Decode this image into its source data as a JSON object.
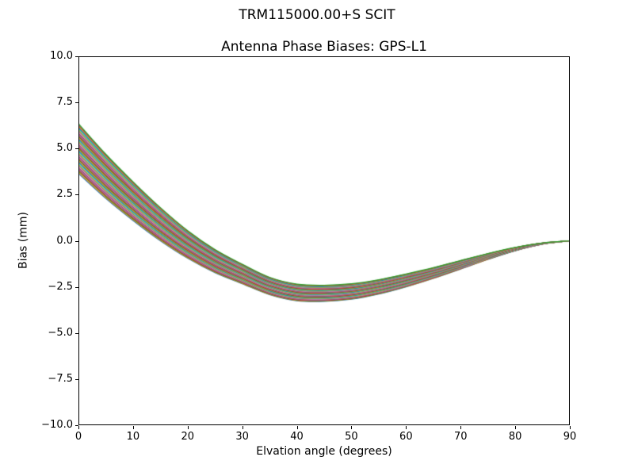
{
  "chart_data": {
    "type": "line",
    "suptitle": "TRM115000.00+S  SCIT",
    "title": "Antenna Phase Biases: GPS-L1",
    "xlabel": "Elvation angle (degrees)",
    "ylabel": "Bias (mm)",
    "xlim": [
      0,
      90
    ],
    "ylim": [
      -10,
      10
    ],
    "grid": false,
    "legend": "none",
    "xticks": [
      0,
      10,
      20,
      30,
      40,
      50,
      60,
      70,
      80,
      90
    ],
    "xtick_labels": [
      "0",
      "10",
      "20",
      "30",
      "40",
      "50",
      "60",
      "70",
      "80",
      "90"
    ],
    "yticks": [
      10.0,
      7.5,
      5.0,
      2.5,
      0.0,
      -2.5,
      -5.0,
      -7.5,
      -10.0
    ],
    "ytick_labels": [
      "10.0",
      "7.5",
      "5.0",
      "2.5",
      "0.0",
      "−2.5",
      "−5.0",
      "−7.5",
      "−10.0"
    ],
    "x": [
      0,
      5,
      10,
      15,
      20,
      25,
      30,
      35,
      40,
      45,
      50,
      55,
      60,
      65,
      70,
      75,
      80,
      85,
      90
    ],
    "base": [
      5.0,
      3.5,
      2.15,
      0.9,
      -0.2,
      -1.1,
      -1.8,
      -2.45,
      -2.8,
      -2.85,
      -2.75,
      -2.5,
      -2.15,
      -1.75,
      -1.3,
      -0.85,
      -0.45,
      -0.15,
      0.0
    ],
    "spread": [
      1.35,
      1.2,
      1.05,
      0.9,
      0.75,
      0.63,
      0.53,
      0.47,
      0.45,
      0.44,
      0.42,
      0.39,
      0.35,
      0.29,
      0.23,
      0.16,
      0.09,
      0.03,
      0.0
    ],
    "series_model": "value[i] = base[i] + offset * spread[i]",
    "series": [
      {
        "offset": -1.0,
        "color": "#1f77b4"
      },
      {
        "offset": -0.953,
        "color": "#ff7f0e"
      },
      {
        "offset": -0.907,
        "color": "#2ca02c"
      },
      {
        "offset": -0.86,
        "color": "#d62728"
      },
      {
        "offset": -0.814,
        "color": "#9467bd"
      },
      {
        "offset": -0.767,
        "color": "#8c564b"
      },
      {
        "offset": -0.721,
        "color": "#e377c2"
      },
      {
        "offset": -0.674,
        "color": "#7f7f7f"
      },
      {
        "offset": -0.628,
        "color": "#bcbd22"
      },
      {
        "offset": -0.581,
        "color": "#17becf"
      },
      {
        "offset": -0.535,
        "color": "#1f77b4"
      },
      {
        "offset": -0.488,
        "color": "#ff7f0e"
      },
      {
        "offset": -0.442,
        "color": "#2ca02c"
      },
      {
        "offset": -0.395,
        "color": "#d62728"
      },
      {
        "offset": -0.349,
        "color": "#9467bd"
      },
      {
        "offset": -0.302,
        "color": "#8c564b"
      },
      {
        "offset": -0.256,
        "color": "#e377c2"
      },
      {
        "offset": -0.209,
        "color": "#7f7f7f"
      },
      {
        "offset": -0.163,
        "color": "#bcbd22"
      },
      {
        "offset": -0.116,
        "color": "#17becf"
      },
      {
        "offset": -0.07,
        "color": "#1f77b4"
      },
      {
        "offset": -0.023,
        "color": "#ff7f0e"
      },
      {
        "offset": 0.023,
        "color": "#2ca02c"
      },
      {
        "offset": 0.07,
        "color": "#d62728"
      },
      {
        "offset": 0.116,
        "color": "#9467bd"
      },
      {
        "offset": 0.163,
        "color": "#8c564b"
      },
      {
        "offset": 0.209,
        "color": "#e377c2"
      },
      {
        "offset": 0.256,
        "color": "#7f7f7f"
      },
      {
        "offset": 0.302,
        "color": "#bcbd22"
      },
      {
        "offset": 0.349,
        "color": "#17becf"
      },
      {
        "offset": 0.395,
        "color": "#1f77b4"
      },
      {
        "offset": 0.442,
        "color": "#ff7f0e"
      },
      {
        "offset": 0.488,
        "color": "#2ca02c"
      },
      {
        "offset": 0.535,
        "color": "#d62728"
      },
      {
        "offset": 0.581,
        "color": "#9467bd"
      },
      {
        "offset": 0.628,
        "color": "#8c564b"
      },
      {
        "offset": 0.674,
        "color": "#e377c2"
      },
      {
        "offset": 0.721,
        "color": "#7f7f7f"
      },
      {
        "offset": 0.767,
        "color": "#bcbd22"
      },
      {
        "offset": 0.814,
        "color": "#17becf"
      },
      {
        "offset": 0.86,
        "color": "#1f77b4"
      },
      {
        "offset": 0.907,
        "color": "#ff7f0e"
      },
      {
        "offset": 0.953,
        "color": "#8c564b"
      },
      {
        "offset": 1.0,
        "color": "#2ca02c"
      }
    ],
    "axis_color": "#000000",
    "background_color": "#ffffff"
  }
}
